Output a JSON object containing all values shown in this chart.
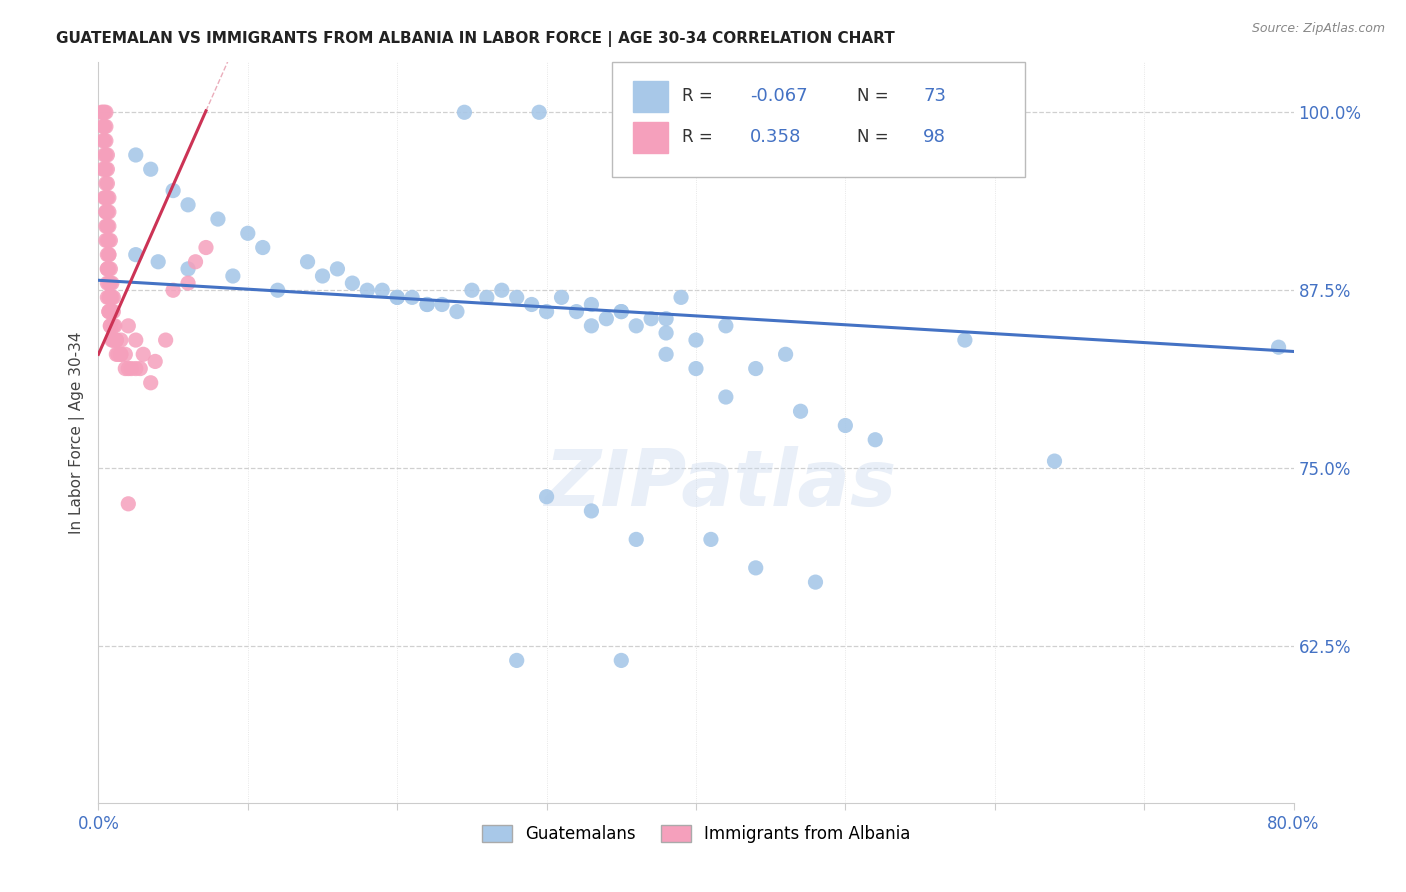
{
  "title": "GUATEMALAN VS IMMIGRANTS FROM ALBANIA IN LABOR FORCE | AGE 30-34 CORRELATION CHART",
  "source_text": "Source: ZipAtlas.com",
  "ylabel": "In Labor Force | Age 30-34",
  "xlim": [
    0.0,
    0.8
  ],
  "ylim": [
    0.515,
    1.035
  ],
  "yticks": [
    0.625,
    0.75,
    0.875,
    1.0
  ],
  "ytick_labels": [
    "62.5%",
    "75.0%",
    "87.5%",
    "100.0%"
  ],
  "xticks": [
    0.0,
    0.1,
    0.2,
    0.3,
    0.4,
    0.5,
    0.6,
    0.7,
    0.8
  ],
  "blue_R": -0.067,
  "blue_N": 73,
  "pink_R": 0.358,
  "pink_N": 98,
  "blue_color": "#a8c8e8",
  "pink_color": "#f5a0bc",
  "blue_line_color": "#4472c4",
  "pink_line_color": "#cc3355",
  "watermark": "ZIPatlas",
  "blue_trend_x0": 0.0,
  "blue_trend_x1": 0.8,
  "blue_trend_y0": 0.882,
  "blue_trend_y1": 0.832,
  "pink_trend_x0": 0.0,
  "pink_trend_x1": 0.072,
  "pink_trend_y0": 0.83,
  "pink_trend_y1": 1.001,
  "legend_label_blue": "Guatemalans",
  "legend_label_pink": "Immigrants from Albania"
}
